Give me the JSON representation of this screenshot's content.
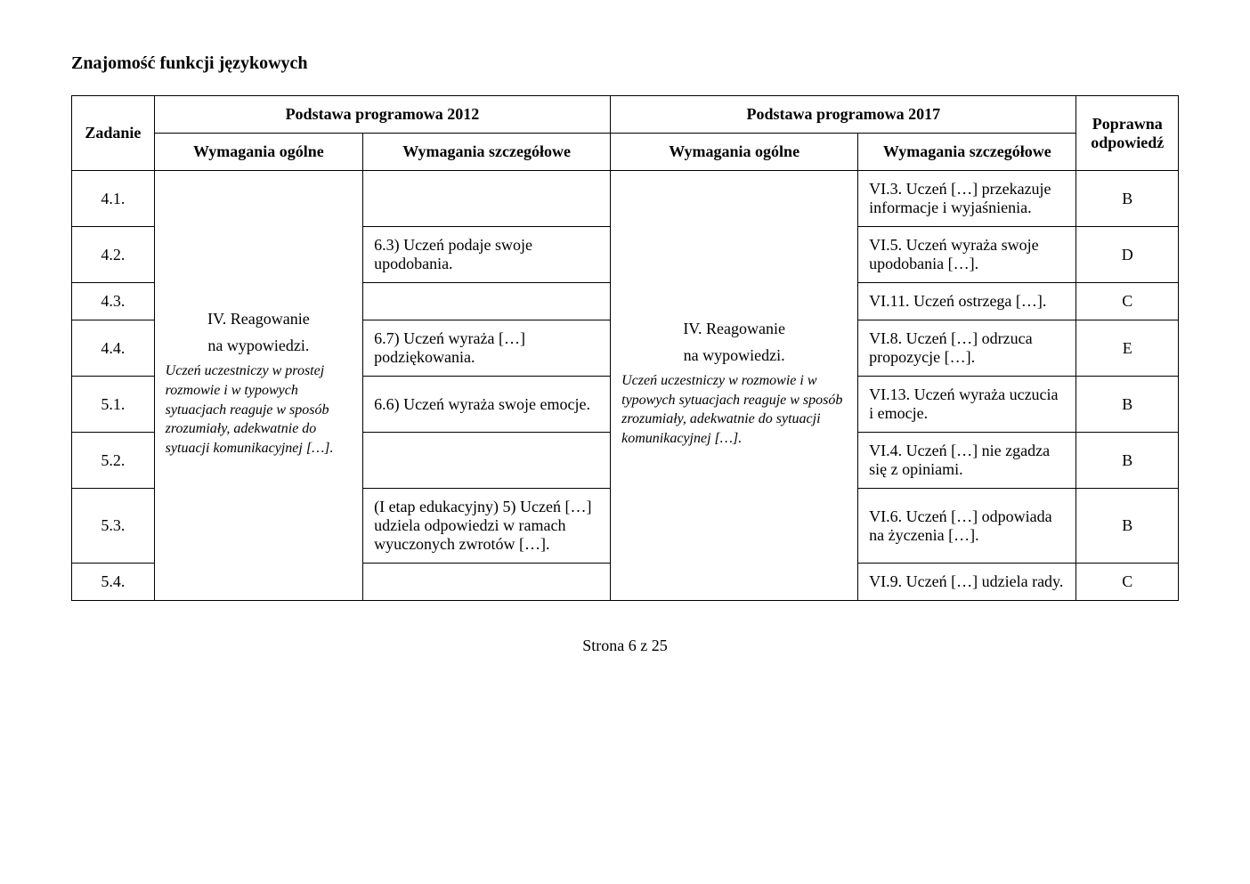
{
  "title": "Znajomość funkcji językowych",
  "header": {
    "zadanie": "Zadanie",
    "pp2012": "Podstawa programowa 2012",
    "pp2017": "Podstawa programowa 2017",
    "wo": "Wymagania ogólne",
    "ws": "Wymagania szczegółowe",
    "odp": "Poprawna odpowiedź"
  },
  "wo2012": {
    "line1": "IV. Reagowanie",
    "line2": "na wypowiedzi.",
    "italic": "Uczeń uczestniczy w prostej rozmowie i w typowych sytuacjach reaguje w sposób zrozumiały, adekwatnie do sytuacji komunikacyjnej […]."
  },
  "wo2017": {
    "line1": "IV. Reagowanie",
    "line2": "na wypowiedzi.",
    "italic": "Uczeń uczestniczy w rozmowie i w typowych sytuacjach reaguje w sposób zrozumiały, adekwatnie do sytuacji komunikacyjnej […]."
  },
  "rows": [
    {
      "zadanie": "4.1.",
      "ws2012": "",
      "ws2017": "VI.3. Uczeń […] przekazuje informacje i wyjaśnienia.",
      "odp": "B"
    },
    {
      "zadanie": "4.2.",
      "ws2012": "6.3) Uczeń podaje swoje upodobania.",
      "ws2017": "VI.5. Uczeń wyraża swoje upodobania […].",
      "odp": "D"
    },
    {
      "zadanie": "4.3.",
      "ws2012": "",
      "ws2017": "VI.11. Uczeń ostrzega […].",
      "odp": "C"
    },
    {
      "zadanie": "4.4.",
      "ws2012": "6.7) Uczeń wyraża […] podziękowania.",
      "ws2017": "VI.8. Uczeń […] odrzuca propozycje […].",
      "odp": "E"
    },
    {
      "zadanie": "5.1.",
      "ws2012": "6.6) Uczeń wyraża swoje emocje.",
      "ws2017": "VI.13. Uczeń wyraża uczucia i emocje.",
      "odp": "B"
    },
    {
      "zadanie": "5.2.",
      "ws2012": "",
      "ws2017": "VI.4. Uczeń […] nie zgadza się z opiniami.",
      "odp": "B"
    },
    {
      "zadanie": "5.3.",
      "ws2012": "(I etap edukacyjny) 5) Uczeń […] udziela odpowiedzi w ramach wyuczonych zwrotów […].",
      "ws2017": "VI.6. Uczeń […] odpowiada na życzenia […].",
      "odp": "B"
    },
    {
      "zadanie": "5.4.",
      "ws2012": "",
      "ws2017": "VI.9. Uczeń […] udziela rady.",
      "odp": "C"
    }
  ],
  "footer": "Strona 6 z 25"
}
